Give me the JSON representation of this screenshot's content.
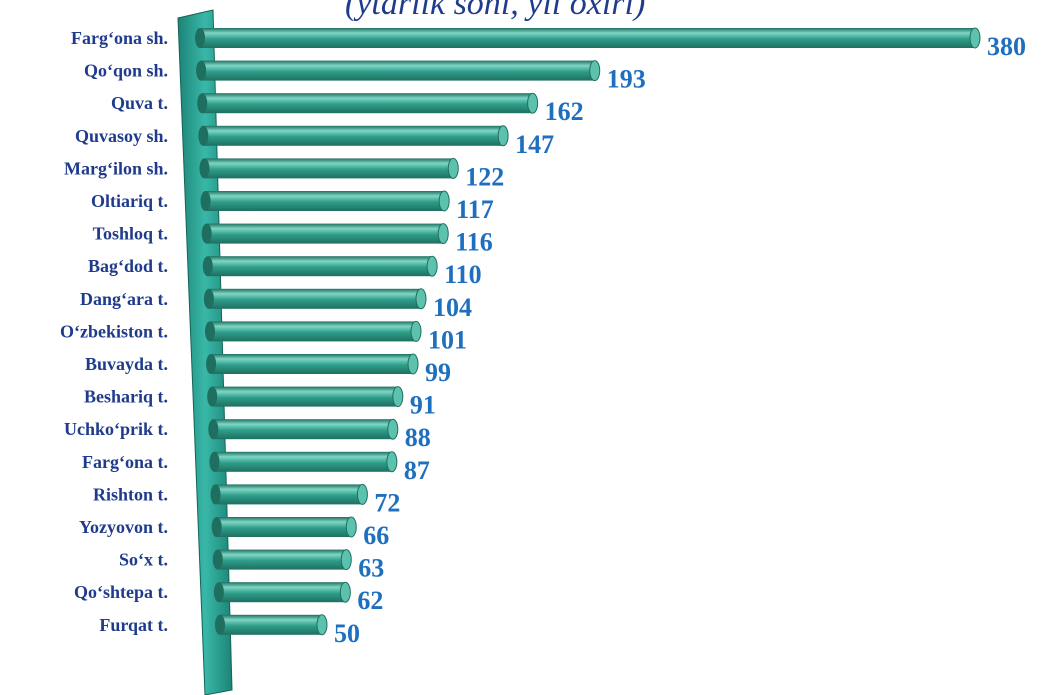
{
  "chart_data": {
    "type": "bar",
    "orientation": "horizontal",
    "title": "(ytarlik soni, yil oxiri)",
    "categories": [
      "Farg‘ona sh.",
      "Qo‘qon sh.",
      "Quva t.",
      "Quvasoy sh.",
      "Marg‘ilon sh.",
      "Oltiariq t.",
      "Toshloq t.",
      "Bag‘dod t.",
      "Dang‘ara t.",
      "O‘zbekiston t.",
      "Buvayda t.",
      "Beshariq t.",
      "Uchko‘prik t.",
      "Farg‘ona t.",
      "Rishton t.",
      "Yozyovon t.",
      "So‘x t.",
      "Qo‘shtepa t.",
      "Furqat t."
    ],
    "values": [
      380,
      193,
      162,
      147,
      122,
      117,
      116,
      110,
      104,
      101,
      99,
      91,
      88,
      87,
      72,
      66,
      63,
      62,
      50
    ],
    "xlim": [
      0,
      380
    ],
    "grid": false,
    "legend": "none",
    "colors": {
      "bar": "#2e9e8a",
      "bar_light": "#7fd6c4",
      "bar_dark": "#1f6f60",
      "axis_wall": "#2aa89a",
      "category_text": "#1f3b8c",
      "value_text": "#1f6fbf"
    }
  }
}
